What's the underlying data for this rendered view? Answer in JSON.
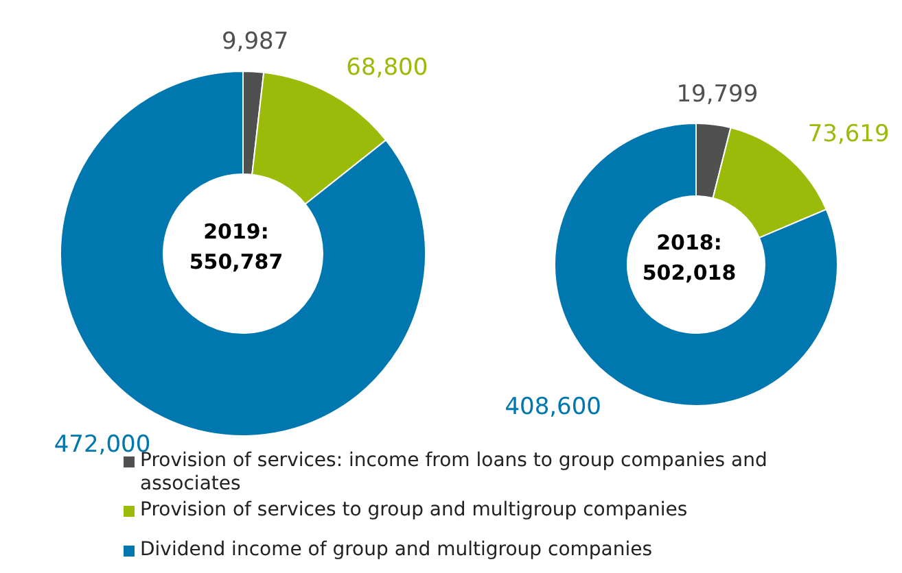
{
  "chart_data": [
    {
      "type": "donut",
      "title": "2019:",
      "subtitle": "550,787",
      "categories": [
        "Provision of services: income from loans to group companies and associates",
        "Provision of services to group and multigroup companies",
        "Dividend income of group and multigroup companies"
      ],
      "values": [
        9987,
        68800,
        472000
      ],
      "value_labels": [
        "9,987",
        "68,800",
        "472,000"
      ],
      "colors": [
        "#505050",
        "#9bbb0a",
        "#0077ae"
      ],
      "legend": "bottom"
    },
    {
      "type": "donut",
      "title": "2018:",
      "subtitle": "502,018",
      "categories": [
        null,
        null,
        null
      ],
      "values": [
        19799,
        73619,
        408600
      ],
      "value_labels": [
        "19,799",
        "73,619",
        "408,600"
      ],
      "colors": [
        "#505050",
        "#9bbb0a",
        "#0077ae"
      ]
    }
  ]
}
